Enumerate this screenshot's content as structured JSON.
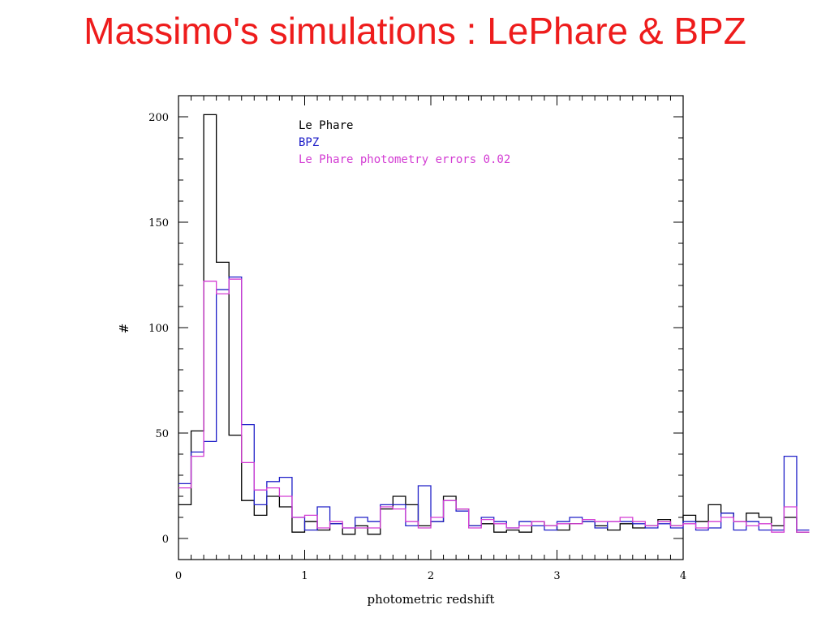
{
  "slide": {
    "title": "Massimo's simulations : LePhare & BPZ",
    "title_color": "#ee1c1c"
  },
  "chart_data": {
    "type": "line",
    "style": "step-histogram",
    "xlabel": "photometric redshift",
    "ylabel": "#",
    "xlim": [
      0,
      4
    ],
    "ylim": [
      -10,
      210
    ],
    "xticks": [
      0,
      1,
      2,
      3,
      4
    ],
    "yticks": [
      0,
      50,
      100,
      150,
      200
    ],
    "legend_position": "top-center",
    "grid": false,
    "bin_width": 0.1,
    "bin_edges_start": 0,
    "series": [
      {
        "name": "Le Phare",
        "color": "#000000",
        "values": [
          16,
          51,
          201,
          131,
          49,
          18,
          11,
          20,
          15,
          3,
          8,
          4,
          7,
          2,
          6,
          2,
          14,
          20,
          16,
          6,
          8,
          20,
          14,
          6,
          7,
          3,
          4,
          3,
          8,
          6,
          4,
          7,
          8,
          6,
          4,
          7,
          5,
          6,
          9,
          6,
          11,
          8,
          16,
          12,
          8,
          12,
          10,
          6,
          10,
          3
        ]
      },
      {
        "name": "BPZ",
        "color": "#2020c8",
        "values": [
          26,
          41,
          46,
          118,
          124,
          54,
          16,
          27,
          29,
          10,
          4,
          15,
          7,
          5,
          10,
          8,
          16,
          16,
          6,
          25,
          8,
          18,
          13,
          6,
          10,
          8,
          5,
          8,
          6,
          4,
          8,
          10,
          8,
          5,
          8,
          8,
          7,
          5,
          7,
          5,
          8,
          4,
          5,
          12,
          4,
          8,
          4,
          4,
          39,
          4
        ]
      },
      {
        "name": "Le Phare photometry errors 0.02",
        "color": "#d33cd3",
        "values": [
          24,
          39,
          122,
          116,
          123,
          36,
          23,
          24,
          20,
          10,
          11,
          5,
          8,
          5,
          5,
          5,
          15,
          14,
          8,
          5,
          10,
          18,
          14,
          5,
          9,
          7,
          5,
          6,
          8,
          6,
          7,
          7,
          9,
          8,
          8,
          10,
          8,
          6,
          8,
          6,
          7,
          5,
          8,
          10,
          8,
          6,
          7,
          3,
          15,
          3
        ]
      }
    ]
  }
}
